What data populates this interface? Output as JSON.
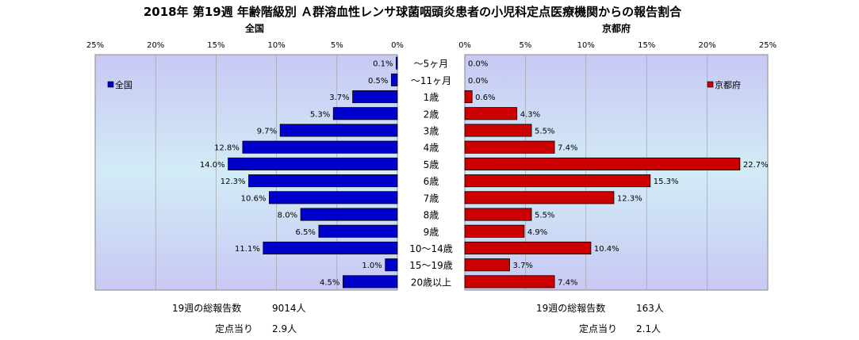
{
  "title": "2018年 第19週 年齢階級別 Ａ群溶血性レンサ球菌咽頭炎患者の小児科定点医療機関からの報告割合",
  "left_stats": {
    "total_label": "19週の総報告数",
    "total_value": "9014人",
    "per_label": "定点当り",
    "per_value": "2.9人"
  },
  "right_stats": {
    "total_label": "19週の総報告数",
    "total_value": "163人",
    "per_label": "定点当り",
    "per_value": "2.1人"
  },
  "chart_data": [
    {
      "type": "bar",
      "subtitle": "全国",
      "legend": "全国",
      "legend_position": "left",
      "color": "#0000cc",
      "orientation": "horizontal",
      "direction": "right-to-left",
      "xlim": [
        0,
        25
      ],
      "ticks": [
        "25%",
        "20%",
        "15%",
        "10%",
        "5%",
        "0%"
      ],
      "grid": true,
      "categories": [
        "～5ヶ月",
        "～11ヶ月",
        "1歳",
        "2歳",
        "3歳",
        "4歳",
        "5歳",
        "6歳",
        "7歳",
        "8歳",
        "9歳",
        "10～14歳",
        "15～19歳",
        "20歳以上"
      ],
      "values": [
        0.1,
        0.5,
        3.7,
        5.3,
        9.7,
        12.8,
        14.0,
        12.3,
        10.6,
        8.0,
        6.5,
        11.1,
        1.0,
        4.5
      ],
      "labels": [
        "0.1%",
        "0.5%",
        "3.7%",
        "5.3%",
        "9.7%",
        "12.8%",
        "14.0%",
        "12.3%",
        "10.6%",
        "8.0%",
        "6.5%",
        "11.1%",
        "1.0%",
        "4.5%"
      ]
    },
    {
      "type": "bar",
      "subtitle": "京都府",
      "legend": "京都府",
      "legend_position": "right",
      "color": "#cc0000",
      "orientation": "horizontal",
      "direction": "left-to-right",
      "xlim": [
        0,
        25
      ],
      "ticks": [
        "0%",
        "5%",
        "10%",
        "15%",
        "20%",
        "25%"
      ],
      "grid": true,
      "categories": [
        "～5ヶ月",
        "～11ヶ月",
        "1歳",
        "2歳",
        "3歳",
        "4歳",
        "5歳",
        "6歳",
        "7歳",
        "8歳",
        "9歳",
        "10～14歳",
        "15～19歳",
        "20歳以上"
      ],
      "values": [
        0.0,
        0.0,
        0.6,
        4.3,
        5.5,
        7.4,
        22.7,
        15.3,
        12.3,
        5.5,
        4.9,
        10.4,
        3.7,
        7.4
      ],
      "labels": [
        "0.0%",
        "0.0%",
        "0.6%",
        "4.3%",
        "5.5%",
        "7.4%",
        "22.7%",
        "15.3%",
        "12.3%",
        "5.5%",
        "4.9%",
        "10.4%",
        "3.7%",
        "7.4%"
      ]
    }
  ]
}
